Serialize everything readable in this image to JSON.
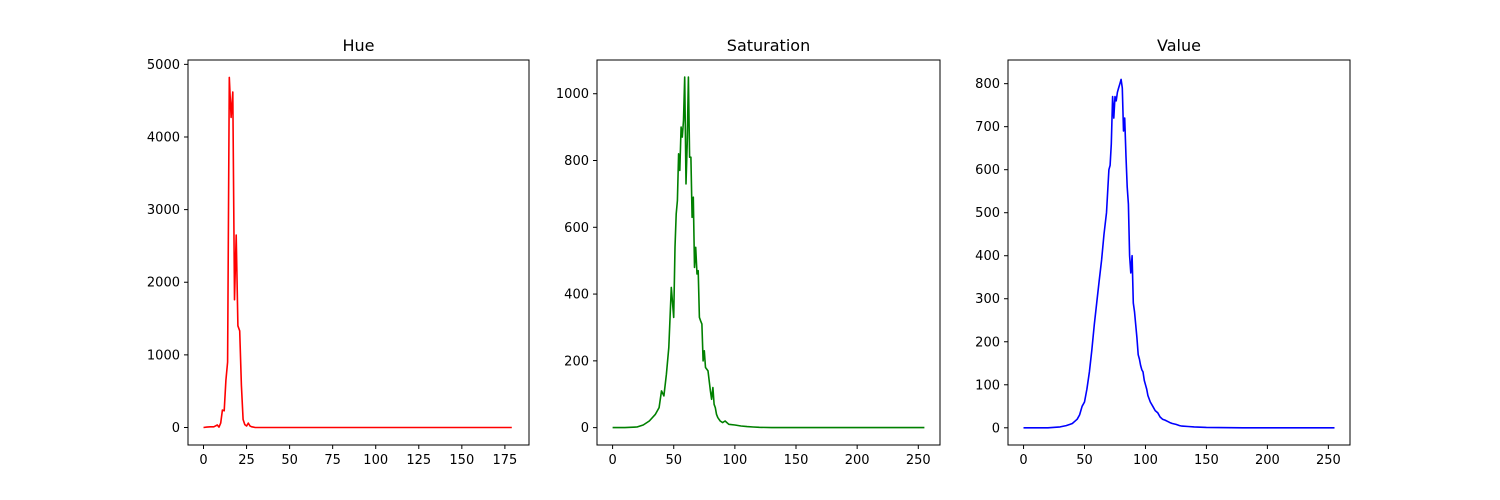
{
  "chart_data": [
    {
      "type": "line",
      "title": "Hue",
      "xlabel": "",
      "ylabel": "",
      "xlim": [
        -9,
        189
      ],
      "ylim": [
        -241,
        5060
      ],
      "xticks": [
        0,
        25,
        50,
        75,
        100,
        125,
        150,
        175
      ],
      "yticks": [
        0,
        1000,
        2000,
        3000,
        4000,
        5000
      ],
      "grid": false,
      "series": [
        {
          "color": "#ff0000",
          "x": [
            0,
            2,
            4,
            6,
            8,
            9,
            10,
            11,
            12,
            13,
            14,
            15,
            16,
            17,
            18,
            19,
            20,
            21,
            22,
            23,
            24,
            25,
            26,
            27,
            28,
            29,
            30,
            32,
            35,
            40,
            60,
            100,
            140,
            179
          ],
          "y": [
            0,
            5,
            10,
            10,
            35,
            5,
            60,
            240,
            230,
            650,
            900,
            4820,
            4270,
            4620,
            1760,
            2650,
            1400,
            1330,
            580,
            110,
            40,
            20,
            60,
            20,
            10,
            5,
            0,
            0,
            0,
            0,
            0,
            0,
            0,
            0
          ]
        }
      ]
    },
    {
      "type": "line",
      "title": "Saturation",
      "xlabel": "",
      "ylabel": "",
      "xlim": [
        -12.75,
        267.75
      ],
      "ylim": [
        -52,
        1101
      ],
      "xticks": [
        0,
        50,
        100,
        150,
        200,
        250
      ],
      "yticks": [
        0,
        200,
        400,
        600,
        800,
        1000
      ],
      "grid": false,
      "series": [
        {
          "color": "#008000",
          "x": [
            0,
            10,
            20,
            25,
            30,
            35,
            38,
            40,
            42,
            44,
            46,
            48,
            50,
            51,
            52,
            53,
            54,
            55,
            56,
            57,
            58,
            59,
            60,
            61,
            62,
            63,
            64,
            65,
            66,
            67,
            68,
            69,
            70,
            71,
            72,
            73,
            74,
            75,
            76,
            78,
            80,
            81,
            82,
            83,
            84,
            85,
            86,
            87,
            88,
            90,
            92,
            95,
            100,
            105,
            110,
            115,
            120,
            130,
            150,
            200,
            255
          ],
          "y": [
            0,
            0,
            2,
            8,
            20,
            40,
            60,
            110,
            95,
            160,
            240,
            420,
            330,
            540,
            640,
            680,
            820,
            770,
            900,
            870,
            920,
            1050,
            730,
            850,
            1050,
            810,
            810,
            630,
            690,
            480,
            540,
            460,
            470,
            330,
            320,
            310,
            200,
            230,
            180,
            170,
            110,
            85,
            120,
            70,
            60,
            40,
            30,
            25,
            20,
            15,
            20,
            10,
            8,
            5,
            3,
            2,
            1,
            0,
            0,
            0,
            0
          ]
        }
      ]
    },
    {
      "type": "line",
      "title": "Value",
      "xlabel": "",
      "ylabel": "",
      "xlim": [
        -12.75,
        267.75
      ],
      "ylim": [
        -40,
        855
      ],
      "xticks": [
        0,
        50,
        100,
        150,
        200,
        250
      ],
      "yticks": [
        0,
        100,
        200,
        300,
        400,
        500,
        600,
        700,
        800
      ],
      "grid": false,
      "series": [
        {
          "color": "#0000ff",
          "x": [
            0,
            20,
            30,
            35,
            38,
            40,
            42,
            44,
            46,
            48,
            50,
            52,
            54,
            56,
            58,
            60,
            62,
            64,
            66,
            68,
            70,
            71,
            72,
            73,
            74,
            75,
            76,
            77,
            78,
            79,
            80,
            81,
            82,
            83,
            84,
            85,
            86,
            87,
            88,
            89,
            90,
            91,
            92,
            93,
            94,
            95,
            96,
            97,
            98,
            99,
            100,
            101,
            102,
            104,
            106,
            108,
            110,
            112,
            114,
            116,
            118,
            120,
            122,
            125,
            128,
            130,
            135,
            140,
            150,
            180,
            200,
            255
          ],
          "y": [
            0,
            0,
            2,
            5,
            8,
            10,
            15,
            20,
            30,
            50,
            60,
            90,
            130,
            180,
            240,
            290,
            340,
            390,
            450,
            500,
            600,
            610,
            660,
            770,
            720,
            770,
            760,
            780,
            790,
            800,
            810,
            790,
            690,
            720,
            630,
            560,
            520,
            400,
            360,
            400,
            290,
            270,
            240,
            210,
            170,
            160,
            145,
            135,
            130,
            110,
            100,
            90,
            75,
            60,
            50,
            40,
            35,
            25,
            20,
            18,
            15,
            12,
            10,
            8,
            5,
            4,
            3,
            2,
            1,
            0,
            0,
            0
          ]
        }
      ]
    }
  ]
}
